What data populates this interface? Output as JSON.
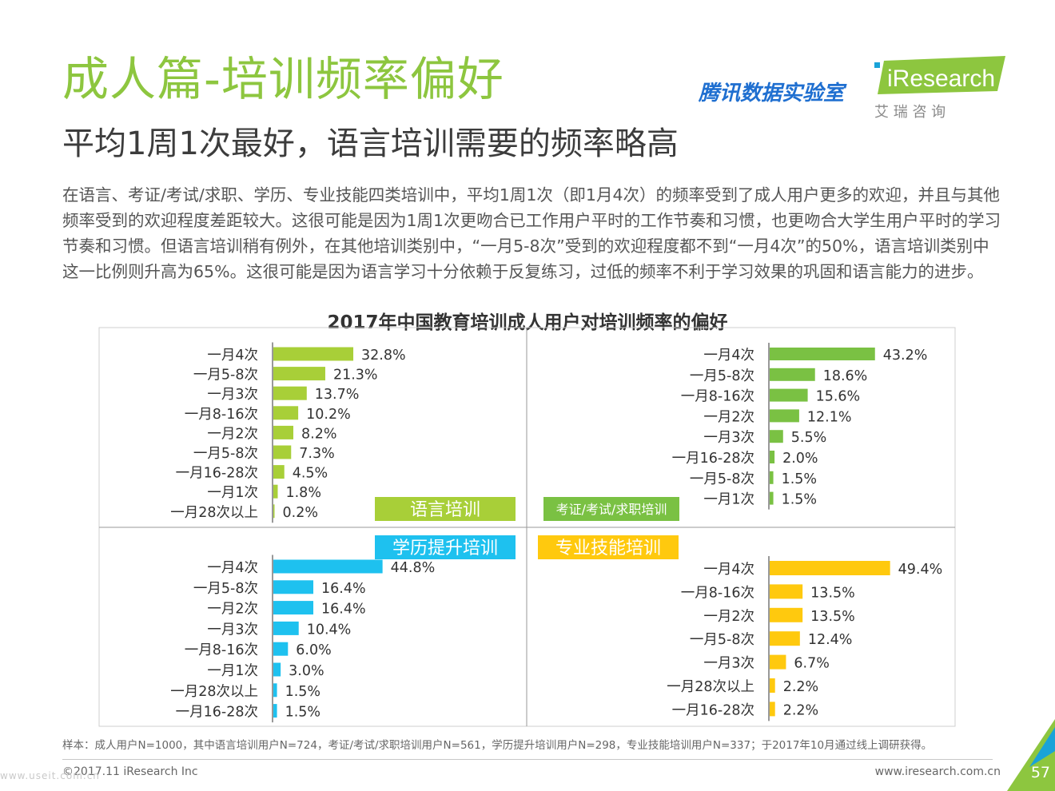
{
  "header": {
    "title": "成人篇-培训频率偏好",
    "subtitle": "平均1周1次最好，语言培训需要的频率略高",
    "partner": "腾讯数据实验室",
    "brand": "iResearch",
    "brand_cn": "艾 瑞 咨 询"
  },
  "body_text": "在语言、考证/考试/求职、学历、专业技能四类培训中，平均1周1次（即1月4次）的频率受到了成人用户更多的欢迎，并且与其他频率受到的欢迎程度差距较大。这很可能是因为1周1次更吻合已工作用户平时的工作节奏和习惯，也更吻合大学生用户平时的学习节奏和习惯。但语言培训稍有例外，在其他培训类别中，“一月5-8次”受到的欢迎程度都不到“一月4次”的50%，语言培训类别中这一比例则升高为65%。这很可能是因为语言学习十分依赖于反复练习，过低的频率不利于学习效果的巩固和语言能力的进步。",
  "chart_title": "2017年中国教育培训成人用户对培训频率的偏好",
  "chart_data": [
    {
      "type": "bar",
      "name": "语言培训",
      "color": "#a8cf38",
      "categories": [
        "一月4次",
        "一月5-8次",
        "一月3次",
        "一月8-16次",
        "一月2次",
        "一月5-8次",
        "一月16-28次",
        "一月1次",
        "一月28次以上"
      ],
      "values": [
        32.8,
        21.3,
        13.7,
        10.2,
        8.2,
        7.3,
        4.5,
        1.8,
        0.2
      ],
      "labels": [
        "32.8%",
        "21.3%",
        "13.7%",
        "10.2%",
        "8.2%",
        "7.3%",
        "4.5%",
        "1.8%",
        "0.2%"
      ]
    },
    {
      "type": "bar",
      "name": "考证/考试/求职培训",
      "color": "#7ac143",
      "categories": [
        "一月4次",
        "一月5-8次",
        "一月8-16次",
        "一月2次",
        "一月3次",
        "一月16-28次",
        "一月5-8次",
        "一月1次"
      ],
      "values": [
        43.2,
        18.6,
        15.6,
        12.1,
        5.5,
        2.0,
        1.5,
        1.5
      ],
      "labels": [
        "43.2%",
        "18.6%",
        "15.6%",
        "12.1%",
        "5.5%",
        "2.0%",
        "1.5%",
        "1.5%"
      ]
    },
    {
      "type": "bar",
      "name": "学历提升培训",
      "color": "#1ec1ef",
      "categories": [
        "一月4次",
        "一月5-8次",
        "一月2次",
        "一月3次",
        "一月8-16次",
        "一月1次",
        "一月28次以上",
        "一月16-28次"
      ],
      "values": [
        44.8,
        16.4,
        16.4,
        10.4,
        6.0,
        3.0,
        1.5,
        1.5
      ],
      "labels": [
        "44.8%",
        "16.4%",
        "16.4%",
        "10.4%",
        "6.0%",
        "3.0%",
        "1.5%",
        "1.5%"
      ]
    },
    {
      "type": "bar",
      "name": "专业技能培训",
      "color": "#ffc90e",
      "categories": [
        "一月4次",
        "一月8-16次",
        "一月2次",
        "一月5-8次",
        "一月3次",
        "一月28次以上",
        "一月16-28次"
      ],
      "values": [
        49.4,
        13.5,
        13.5,
        12.4,
        6.7,
        2.2,
        2.2
      ],
      "labels": [
        "49.4%",
        "13.5%",
        "13.5%",
        "12.4%",
        "6.7%",
        "2.2%",
        "2.2%"
      ]
    }
  ],
  "footnote": "样本：成人用户N=1000，其中语言培训用户N=724，考证/考试/求职培训用户N=561，学历提升培训用户N=298，专业技能培训用户N=337；于2017年10月通过线上调研获得。",
  "footer": {
    "copyright": "©2017.11 iResearch Inc",
    "website": "www.iresearch.com.cn",
    "page": "57",
    "watermark": "www.useit.com.cn"
  },
  "colors": {
    "accent": "#8dc63f",
    "corner_green": "#8dc63f",
    "corner_blue": "#1aa3d8"
  }
}
